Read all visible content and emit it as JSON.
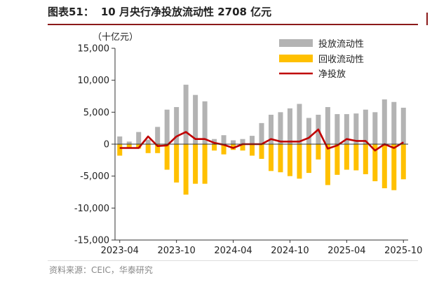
{
  "figure": {
    "number_label": "图表51：",
    "title": "10 月央行净投放流动性 2708 亿元",
    "source": "资料来源：CEIC，华泰研究",
    "unit": "（十亿元）"
  },
  "colors": {
    "injection": "#b3b3b3",
    "withdrawal": "#ffc000",
    "net": "#c00000",
    "header_rule": "#8b1a1a"
  },
  "chart_data": {
    "type": "bar",
    "ylim": [
      -15000,
      15000
    ],
    "yticks": [
      15000,
      10000,
      5000,
      0,
      -5000,
      -10000,
      -15000
    ],
    "ytick_labels": [
      "15,000",
      "10,000",
      "5,000",
      "0",
      "-5,000",
      "-10,000",
      "-15,000"
    ],
    "xtick_labels": [
      "2023-04",
      "2023-10",
      "2024-04",
      "2024-10",
      "2025-04",
      "2025-10"
    ],
    "xtick_index": [
      0,
      6,
      12,
      18,
      24,
      30
    ],
    "categories": [
      "2023-04",
      "2023-05",
      "2023-06",
      "2023-07",
      "2023-08",
      "2023-09",
      "2023-10",
      "2023-11",
      "2023-12",
      "2024-01",
      "2024-02",
      "2024-03",
      "2024-04",
      "2024-05",
      "2024-06",
      "2024-07",
      "2024-08",
      "2024-09",
      "2024-10",
      "2024-11",
      "2024-12",
      "2025-01",
      "2025-02",
      "2025-03",
      "2025-04",
      "2025-05",
      "2025-06",
      "2025-07",
      "2025-08",
      "2025-09",
      "2025-10"
    ],
    "series": [
      {
        "name": "投放流动性",
        "kind": "bar",
        "values": [
          1200,
          400,
          1900,
          700,
          2700,
          5400,
          5800,
          9300,
          7700,
          6700,
          800,
          1400,
          600,
          800,
          1300,
          3300,
          4600,
          5000,
          5600,
          6300,
          4100,
          4600,
          5800,
          4700,
          4700,
          4800,
          5400,
          5000,
          7000,
          6600,
          5700
        ]
      },
      {
        "name": "回收流动性",
        "kind": "bar",
        "values": [
          -1800,
          -500,
          -700,
          -1400,
          -1400,
          -4000,
          -6000,
          -7900,
          -6200,
          -6200,
          -1000,
          -1600,
          -900,
          -1000,
          -1800,
          -2300,
          -4200,
          -4400,
          -5000,
          -5400,
          -4500,
          -2400,
          -6400,
          -4800,
          -4000,
          -4100,
          -4700,
          -5800,
          -6900,
          -7200,
          -5500
        ]
      },
      {
        "name": "净投放",
        "kind": "line",
        "values": [
          -600,
          -600,
          -600,
          1200,
          -300,
          -200,
          1200,
          1900,
          800,
          800,
          200,
          -100,
          -600,
          0,
          0,
          0,
          800,
          400,
          400,
          400,
          1000,
          2300,
          -700,
          -200,
          800,
          500,
          500,
          -1000,
          0,
          -600,
          300
        ]
      }
    ],
    "legend": {
      "position": "top-right"
    }
  }
}
